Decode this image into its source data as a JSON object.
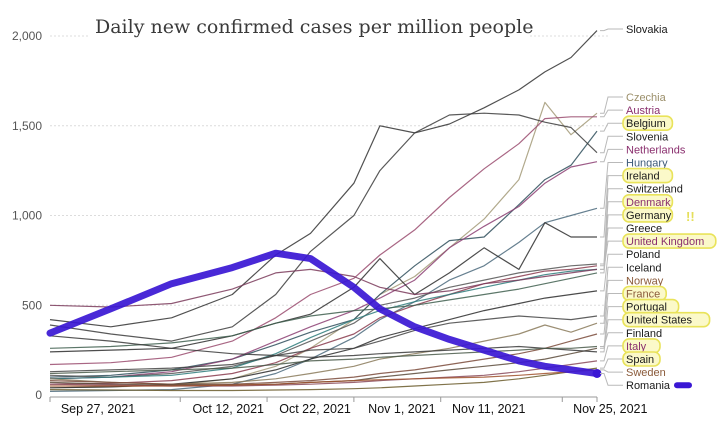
{
  "chart_data": {
    "type": "line",
    "title": "Daily new confirmed cases per million people",
    "xlabel": "",
    "ylabel": "",
    "x_unit": "days since Sep 27, 2021",
    "xlim": [
      0,
      63
    ],
    "ylim": [
      0,
      2000
    ],
    "grid": true,
    "legend_position": "right",
    "yticks": [
      {
        "value": 0,
        "label": "0"
      },
      {
        "value": 500,
        "label": "500"
      },
      {
        "value": 1000,
        "label": "1,000"
      },
      {
        "value": 1500,
        "label": "1,500"
      },
      {
        "value": 2000,
        "label": "2,000"
      }
    ],
    "xticks": [
      {
        "value": 0,
        "label": "Sep 27, 2021"
      },
      {
        "value": 15,
        "label": "Oct 12, 2021"
      },
      {
        "value": 25,
        "label": "Oct 22, 2021"
      },
      {
        "value": 35,
        "label": "Nov 1, 2021"
      },
      {
        "value": 45,
        "label": "Nov 11, 2021"
      },
      {
        "value": 59,
        "label": "Nov 25, 2021"
      }
    ],
    "x": [
      0,
      7,
      14,
      21,
      26,
      30,
      35,
      38,
      42,
      46,
      50,
      54,
      57,
      60,
      63
    ],
    "series": [
      {
        "name": "Slovakia",
        "color": "#333333",
        "highlighted": false,
        "values": [
          420,
          380,
          430,
          560,
          780,
          900,
          1180,
          1500,
          1460,
          1510,
          1600,
          1700,
          1800,
          1880,
          2030
        ]
      },
      {
        "name": "Czechia",
        "color": "#a39a78",
        "highlighted": false,
        "values": [
          40,
          45,
          55,
          90,
          160,
          260,
          420,
          560,
          660,
          820,
          980,
          1200,
          1630,
          1450,
          1570
        ]
      },
      {
        "name": "Austria",
        "color": "#9a4b6e",
        "highlighted": false,
        "values": [
          170,
          180,
          210,
          300,
          430,
          560,
          650,
          780,
          920,
          1100,
          1260,
          1400,
          1540,
          1550,
          1550
        ]
      },
      {
        "name": "Belgium",
        "color": "#2f4f5c",
        "highlighted": true,
        "values": [
          100,
          110,
          140,
          200,
          280,
          350,
          420,
          560,
          720,
          860,
          880,
          1060,
          1200,
          1280,
          1470
        ]
      },
      {
        "name": "Slovenia",
        "color": "#3c3c3c",
        "highlighted": false,
        "values": [
          390,
          340,
          300,
          380,
          560,
          800,
          1000,
          1250,
          1460,
          1560,
          1570,
          1560,
          1520,
          1490,
          1350
        ]
      },
      {
        "name": "Netherlands",
        "color": "#8c3f73",
        "highlighted": false,
        "values": [
          90,
          100,
          130,
          200,
          300,
          380,
          470,
          540,
          640,
          820,
          940,
          1050,
          1180,
          1270,
          1300
        ]
      },
      {
        "name": "Hungary",
        "color": "#4b6a7c",
        "highlighted": false,
        "values": [
          20,
          25,
          30,
          60,
          120,
          200,
          320,
          420,
          520,
          640,
          720,
          850,
          960,
          1000,
          1040
        ]
      },
      {
        "name": "Ireland",
        "color": "#2e2e2e",
        "highlighted": true,
        "values": [
          240,
          250,
          260,
          330,
          400,
          450,
          600,
          760,
          560,
          680,
          820,
          700,
          960,
          880,
          880
        ]
      },
      {
        "name": "Switzerland",
        "color": "#555555",
        "highlighted": false,
        "values": [
          110,
          100,
          120,
          160,
          220,
          300,
          400,
          500,
          540,
          600,
          640,
          680,
          700,
          720,
          730
        ]
      },
      {
        "name": "Denmark",
        "color": "#8a3b4d",
        "highlighted": true,
        "values": [
          60,
          65,
          80,
          120,
          180,
          260,
          340,
          430,
          500,
          560,
          620,
          660,
          690,
          700,
          720
        ]
      },
      {
        "name": "Germany",
        "color": "#2e7b7b",
        "highlighted": true,
        "values": [
          90,
          100,
          110,
          150,
          230,
          320,
          420,
          470,
          520,
          560,
          600,
          640,
          670,
          690,
          700
        ]
      },
      {
        "name": "Greece",
        "color": "#3f5f4f",
        "highlighted": false,
        "values": [
          260,
          270,
          290,
          330,
          400,
          440,
          470,
          480,
          500,
          530,
          560,
          590,
          620,
          650,
          680
        ]
      },
      {
        "name": "United Kingdom",
        "color": "#7b3b5c",
        "highlighted": true,
        "values": [
          500,
          490,
          510,
          590,
          680,
          700,
          660,
          600,
          560,
          580,
          620,
          640,
          660,
          680,
          700
        ]
      },
      {
        "name": "Poland",
        "color": "#2b2b2b",
        "highlighted": false,
        "values": [
          40,
          45,
          60,
          90,
          140,
          200,
          260,
          320,
          370,
          420,
          470,
          510,
          540,
          560,
          580
        ]
      },
      {
        "name": "Iceland",
        "color": "#444444",
        "highlighted": false,
        "values": [
          130,
          140,
          150,
          170,
          220,
          250,
          260,
          300,
          360,
          400,
          420,
          440,
          430,
          420,
          440
        ]
      },
      {
        "name": "Norway",
        "color": "#8a7a5a",
        "highlighted": false,
        "values": [
          90,
          70,
          60,
          70,
          90,
          120,
          160,
          200,
          230,
          260,
          300,
          340,
          390,
          350,
          400
        ]
      },
      {
        "name": "France",
        "color": "#7a4a3a",
        "highlighted": true,
        "values": [
          80,
          70,
          60,
          60,
          70,
          80,
          100,
          120,
          140,
          170,
          200,
          230,
          260,
          300,
          340
        ]
      },
      {
        "name": "Portugal",
        "color": "#5a4a3a",
        "highlighted": true,
        "values": [
          70,
          60,
          55,
          55,
          60,
          70,
          80,
          100,
          120,
          140,
          160,
          180,
          200,
          230,
          260
        ]
      },
      {
        "name": "United States",
        "color": "#3a3a3a",
        "highlighted": true,
        "values": [
          330,
          300,
          260,
          230,
          220,
          210,
          220,
          230,
          240,
          250,
          260,
          270,
          260,
          250,
          240
        ]
      },
      {
        "name": "Finland",
        "color": "#4a5a4a",
        "highlighted": false,
        "values": [
          120,
          130,
          140,
          150,
          170,
          190,
          200,
          210,
          220,
          230,
          240,
          250,
          260,
          260,
          270
        ]
      },
      {
        "name": "Italy",
        "color": "#8a4a5a",
        "highlighted": true,
        "values": [
          60,
          55,
          50,
          50,
          55,
          60,
          70,
          80,
          90,
          100,
          110,
          130,
          150,
          170,
          190
        ]
      },
      {
        "name": "Spain",
        "color": "#6a5a2a",
        "highlighted": true,
        "values": [
          30,
          28,
          25,
          25,
          28,
          30,
          35,
          40,
          50,
          60,
          70,
          90,
          110,
          130,
          150
        ]
      },
      {
        "name": "Sweden",
        "color": "#a0522d",
        "highlighted": false,
        "values": [
          50,
          50,
          50,
          55,
          60,
          70,
          80,
          85,
          90,
          95,
          100,
          110,
          120,
          130,
          140
        ]
      },
      {
        "name": "Romania",
        "color": "#3a17d4",
        "highlighted": true,
        "values": [
          345,
          480,
          620,
          710,
          790,
          760,
          600,
          480,
          380,
          310,
          250,
          190,
          160,
          140,
          120
        ]
      }
    ]
  },
  "annotations": {
    "germany_mark": "!!"
  }
}
